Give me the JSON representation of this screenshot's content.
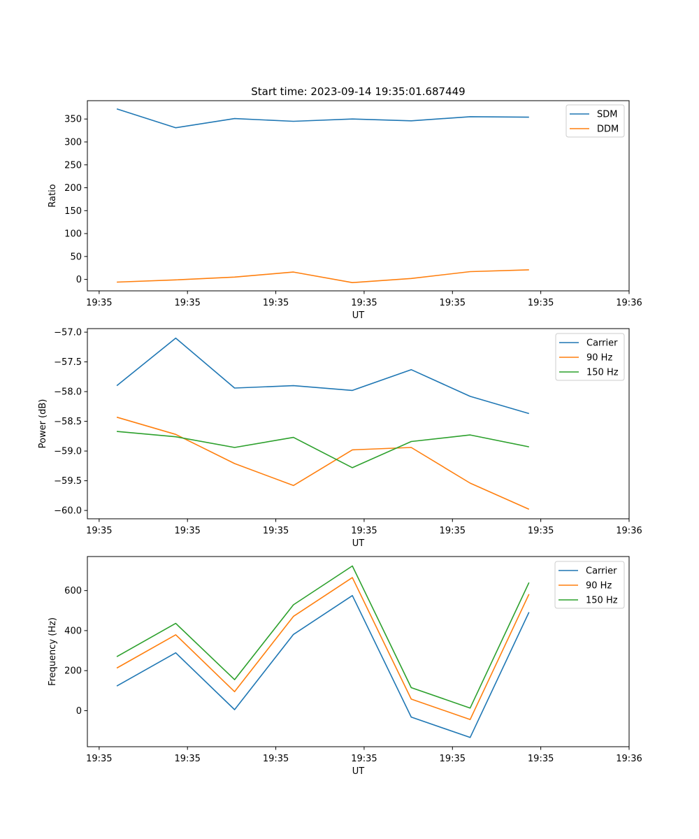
{
  "chart_data": [
    {
      "type": "line",
      "title": "Start time: 2023-09-14 19:35:01.687449",
      "xlabel": "UT",
      "ylabel": "Ratio",
      "xlim": [
        -0.5,
        8.7
      ],
      "x_ticks": [
        {
          "x": -0.3,
          "label": "19:35"
        },
        {
          "x": 1.2,
          "label": "19:35"
        },
        {
          "x": 2.7,
          "label": "19:35"
        },
        {
          "x": 4.2,
          "label": "19:35"
        },
        {
          "x": 5.7,
          "label": "19:35"
        },
        {
          "x": 7.2,
          "label": "19:35"
        },
        {
          "x": 8.7,
          "label": "19:36"
        }
      ],
      "x": [
        0,
        1,
        2,
        3,
        4,
        5,
        6,
        7
      ],
      "ylim": [
        -25,
        390
      ],
      "yticks": [
        0,
        50,
        100,
        150,
        200,
        250,
        300,
        350
      ],
      "legend": "top-right",
      "series": [
        {
          "name": "SDM",
          "color": "#1f77b4",
          "values": [
            372,
            331,
            351,
            345,
            350,
            346,
            355,
            354
          ]
        },
        {
          "name": "DDM",
          "color": "#ff7f0e",
          "values": [
            -6,
            -1,
            5,
            16,
            -7,
            2,
            17,
            21
          ]
        }
      ]
    },
    {
      "type": "line",
      "title": "",
      "xlabel": "UT",
      "ylabel": "Power (dB)",
      "xlim": [
        -0.5,
        8.7
      ],
      "x_ticks": [
        {
          "x": -0.3,
          "label": "19:35"
        },
        {
          "x": 1.2,
          "label": "19:35"
        },
        {
          "x": 2.7,
          "label": "19:35"
        },
        {
          "x": 4.2,
          "label": "19:35"
        },
        {
          "x": 5.7,
          "label": "19:35"
        },
        {
          "x": 7.2,
          "label": "19:35"
        },
        {
          "x": 8.7,
          "label": "19:36"
        }
      ],
      "x": [
        0,
        1,
        2,
        3,
        4,
        5,
        6,
        7
      ],
      "ylim": [
        -60.14,
        -56.94
      ],
      "yticks": [
        -60.0,
        -59.5,
        -59.0,
        -58.5,
        -58.0,
        -57.5,
        -57.0
      ],
      "ytick_labels": [
        "−60.0",
        "−59.5",
        "−59.0",
        "−58.5",
        "−58.0",
        "−57.5",
        "−57.0"
      ],
      "legend": "top-right",
      "series": [
        {
          "name": "Carrier",
          "color": "#1f77b4",
          "values": [
            -57.9,
            -57.1,
            -57.94,
            -57.9,
            -57.98,
            -57.63,
            -58.08,
            -58.37
          ]
        },
        {
          "name": "90 Hz",
          "color": "#ff7f0e",
          "values": [
            -58.43,
            -58.72,
            -59.21,
            -59.58,
            -58.98,
            -58.94,
            -59.54,
            -59.98
          ]
        },
        {
          "name": "150 Hz",
          "color": "#2ca02c",
          "values": [
            -58.67,
            -58.76,
            -58.94,
            -58.77,
            -59.28,
            -58.84,
            -58.73,
            -58.93
          ]
        }
      ]
    },
    {
      "type": "line",
      "title": "",
      "xlabel": "UT",
      "ylabel": "Frequency (Hz)",
      "xlim": [
        -0.5,
        8.7
      ],
      "x_ticks": [
        {
          "x": -0.3,
          "label": "19:35"
        },
        {
          "x": 1.2,
          "label": "19:35"
        },
        {
          "x": 2.7,
          "label": "19:35"
        },
        {
          "x": 4.2,
          "label": "19:35"
        },
        {
          "x": 5.7,
          "label": "19:35"
        },
        {
          "x": 7.2,
          "label": "19:35"
        },
        {
          "x": 8.7,
          "label": "19:36"
        }
      ],
      "x": [
        0,
        1,
        2,
        3,
        4,
        5,
        6,
        7
      ],
      "ylim": [
        -180,
        770
      ],
      "yticks": [
        0,
        200,
        400,
        600
      ],
      "legend": "top-right",
      "series": [
        {
          "name": "Carrier",
          "color": "#1f77b4",
          "values": [
            123,
            289,
            5,
            381,
            575,
            -32,
            -134,
            492
          ]
        },
        {
          "name": "90 Hz",
          "color": "#ff7f0e",
          "values": [
            213,
            379,
            95,
            471,
            665,
            58,
            -44,
            582
          ]
        },
        {
          "name": "150 Hz",
          "color": "#2ca02c",
          "values": [
            270,
            436,
            155,
            529,
            723,
            115,
            13,
            640
          ]
        }
      ]
    }
  ]
}
